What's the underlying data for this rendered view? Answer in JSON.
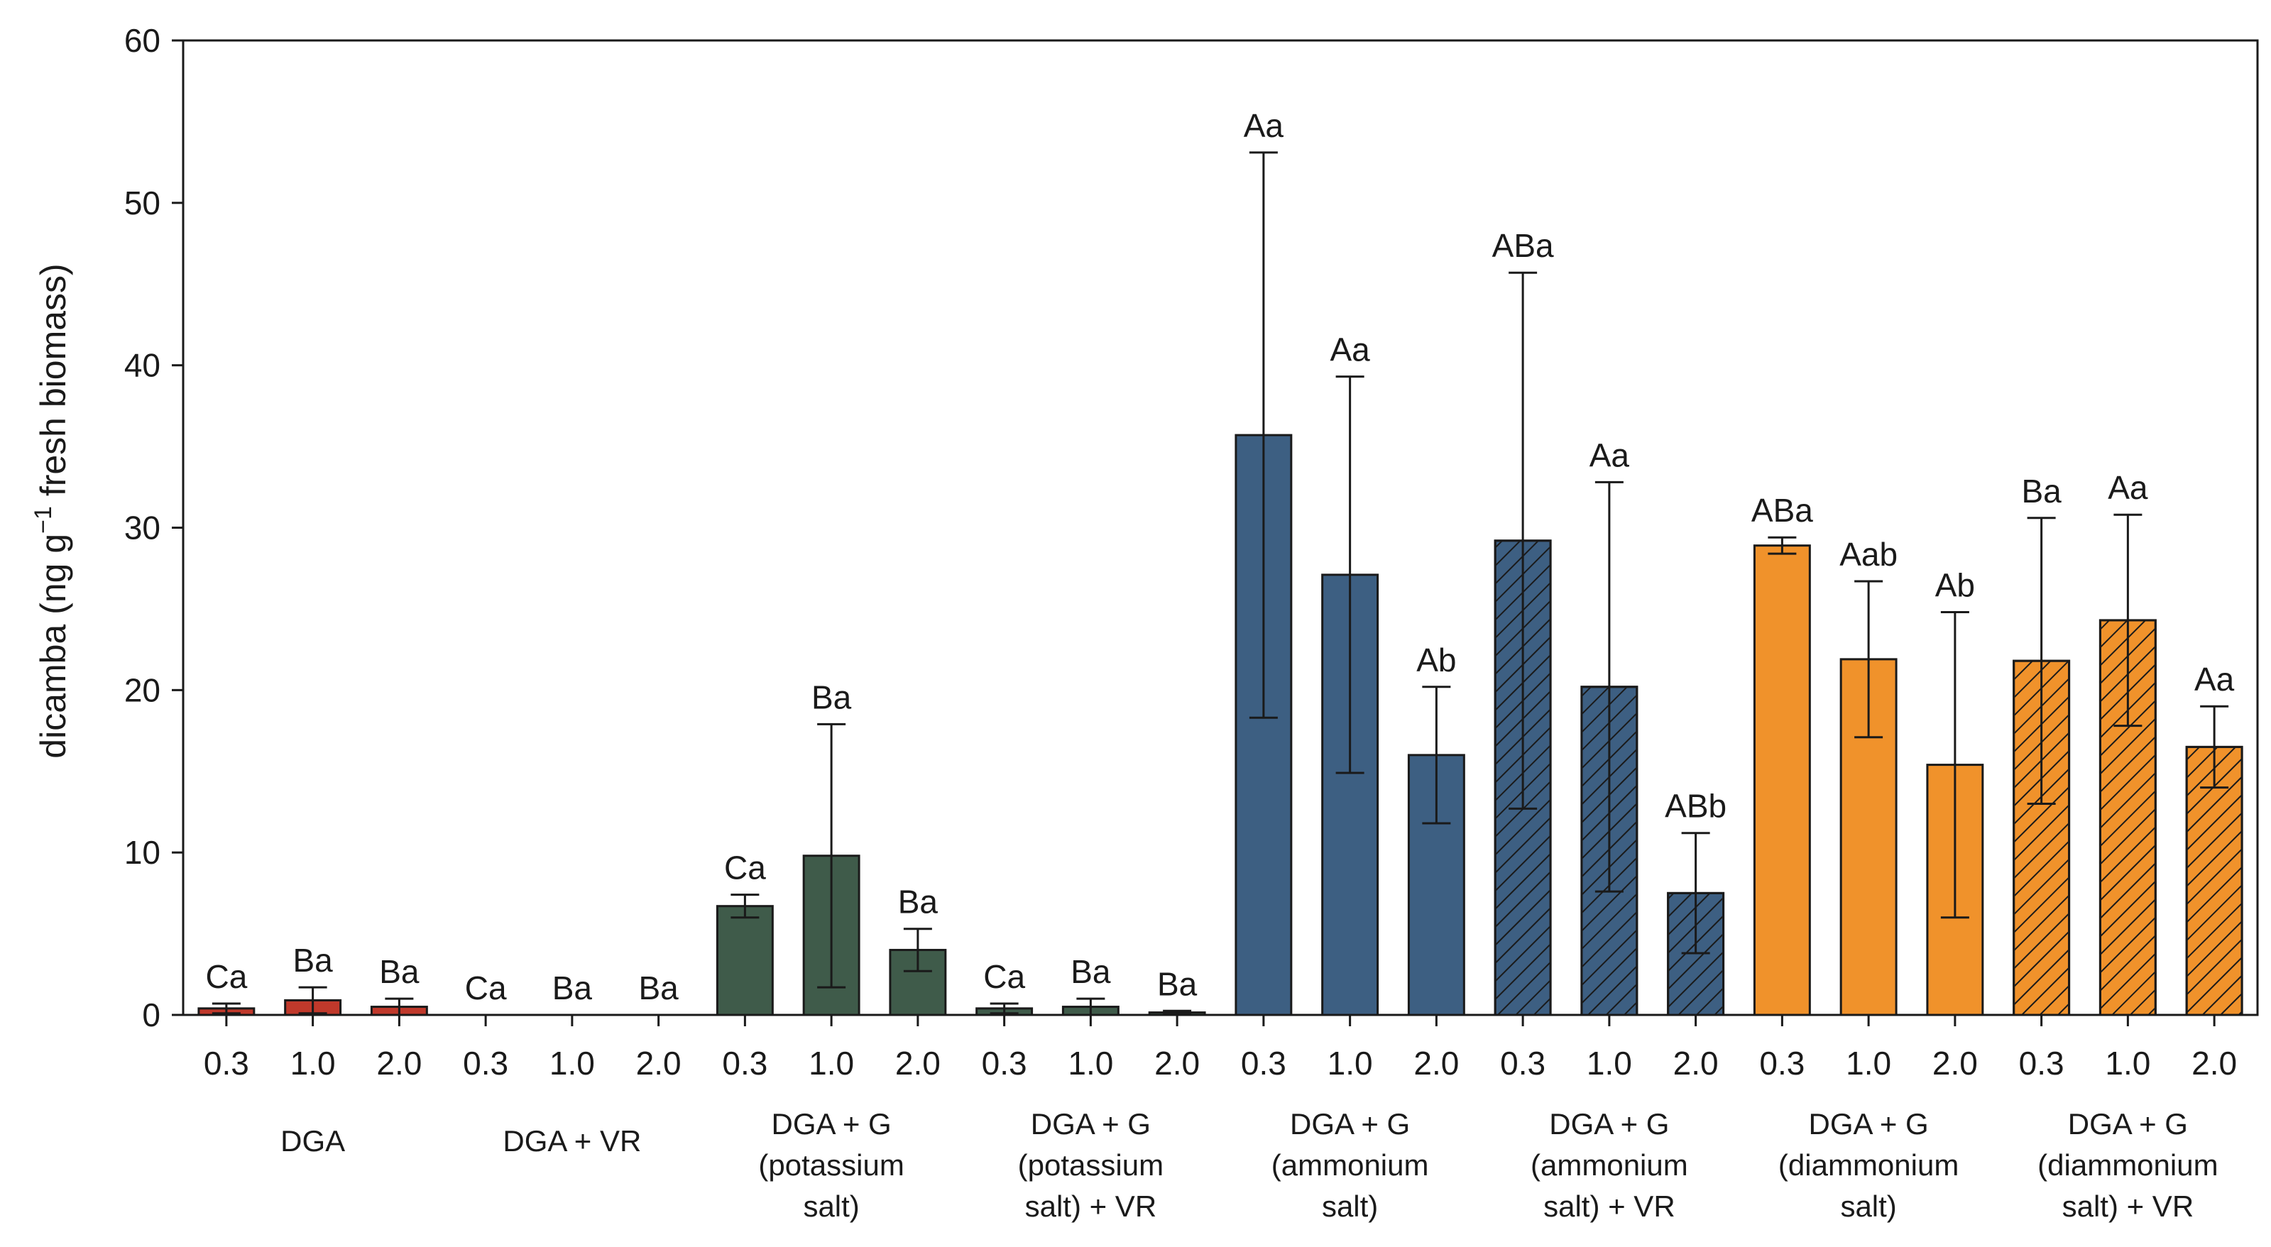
{
  "chart_data": {
    "type": "bar",
    "ylabel_main": "dicamba (ng g",
    "ylabel_sup": "−1",
    "ylabel_tail": " fresh biomass)",
    "xlabel": "",
    "ylim": [
      0,
      60
    ],
    "yticks": [
      0,
      10,
      20,
      30,
      40,
      50,
      60
    ],
    "grid": false,
    "legend": "none",
    "groups": [
      {
        "label_lines": [
          "DGA"
        ],
        "color": "#c0392b",
        "hatched": false,
        "bars": [
          {
            "rate": "0.3",
            "value": 0.4,
            "error": 0.3,
            "letters": "Ca"
          },
          {
            "rate": "1.0",
            "value": 0.9,
            "error": 0.8,
            "letters": "Ba"
          },
          {
            "rate": "2.0",
            "value": 0.5,
            "error": 0.5,
            "letters": "Ba"
          }
        ]
      },
      {
        "label_lines": [
          "DGA + VR"
        ],
        "color": "#c0392b",
        "hatched": false,
        "bars": [
          {
            "rate": "0.3",
            "value": 0,
            "error": 0,
            "letters": "Ca"
          },
          {
            "rate": "1.0",
            "value": 0,
            "error": 0,
            "letters": "Ba"
          },
          {
            "rate": "2.0",
            "value": 0,
            "error": 0,
            "letters": "Ba"
          }
        ]
      },
      {
        "label_lines": [
          "DGA + G",
          "(potassium",
          "salt)"
        ],
        "color": "#3f5b4a",
        "hatched": false,
        "bars": [
          {
            "rate": "0.3",
            "value": 6.7,
            "error": 0.7,
            "letters": "Ca"
          },
          {
            "rate": "1.0",
            "value": 9.8,
            "error": 8.1,
            "letters": "Ba"
          },
          {
            "rate": "2.0",
            "value": 4.0,
            "error": 1.3,
            "letters": "Ba"
          }
        ]
      },
      {
        "label_lines": [
          "DGA + G",
          "(potassium",
          "salt) + VR"
        ],
        "color": "#3f5b4a",
        "hatched": false,
        "bars": [
          {
            "rate": "0.3",
            "value": 0.4,
            "error": 0.3,
            "letters": "Ca"
          },
          {
            "rate": "1.0",
            "value": 0.5,
            "error": 0.5,
            "letters": "Ba"
          },
          {
            "rate": "2.0",
            "value": 0.15,
            "error": 0.1,
            "letters": "Ba"
          }
        ]
      },
      {
        "label_lines": [
          "DGA + G",
          "(ammonium",
          "salt)"
        ],
        "color": "#3d5f82",
        "hatched": false,
        "bars": [
          {
            "rate": "0.3",
            "value": 35.7,
            "error": 17.4,
            "letters": "Aa"
          },
          {
            "rate": "1.0",
            "value": 27.1,
            "error": 12.2,
            "letters": "Aa"
          },
          {
            "rate": "2.0",
            "value": 16.0,
            "error": 4.2,
            "letters": "Ab"
          }
        ]
      },
      {
        "label_lines": [
          "DGA + G",
          "(ammonium",
          "salt) + VR"
        ],
        "color": "#3d5f82",
        "hatched": true,
        "bars": [
          {
            "rate": "0.3",
            "value": 29.2,
            "error": 16.5,
            "letters": "ABa"
          },
          {
            "rate": "1.0",
            "value": 20.2,
            "error": 12.6,
            "letters": "Aa"
          },
          {
            "rate": "2.0",
            "value": 7.5,
            "error": 3.7,
            "letters": "ABb"
          }
        ]
      },
      {
        "label_lines": [
          "DGA + G",
          "(diammonium",
          "salt)"
        ],
        "color": "#f0922b",
        "hatched": false,
        "bars": [
          {
            "rate": "0.3",
            "value": 28.9,
            "error": 0.5,
            "letters": "ABa"
          },
          {
            "rate": "1.0",
            "value": 21.9,
            "error": 4.8,
            "letters": "Aab"
          },
          {
            "rate": "2.0",
            "value": 15.4,
            "error": 9.4,
            "letters": "Ab"
          }
        ]
      },
      {
        "label_lines": [
          "DGA + G",
          "(diammonium",
          "salt) + VR"
        ],
        "color": "#f0922b",
        "hatched": true,
        "bars": [
          {
            "rate": "0.3",
            "value": 21.8,
            "error": 8.8,
            "letters": "Ba"
          },
          {
            "rate": "1.0",
            "value": 24.3,
            "error": 6.5,
            "letters": "Aa"
          },
          {
            "rate": "2.0",
            "value": 16.5,
            "error": 2.5,
            "letters": "Aa"
          }
        ]
      }
    ]
  }
}
